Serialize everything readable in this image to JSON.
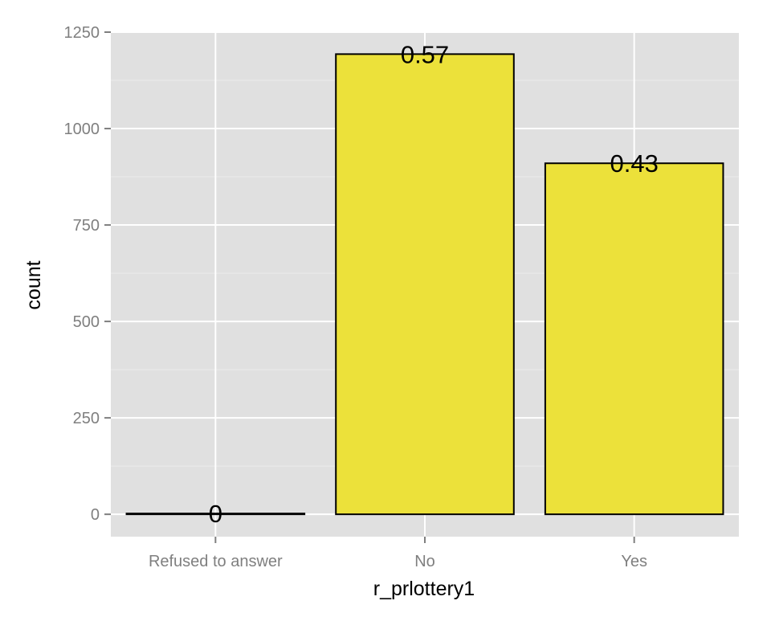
{
  "chart_data": {
    "type": "bar",
    "title": "",
    "xlabel": "r_prlottery1",
    "ylabel": "count",
    "categories": [
      "Refused to answer",
      "No",
      "Yes"
    ],
    "values": [
      2,
      1193,
      910
    ],
    "data_labels": [
      "0",
      "0.57",
      "0.43"
    ],
    "ylim": [
      -58,
      1250
    ],
    "y_ticks": [
      0,
      250,
      500,
      750,
      1000,
      1250
    ],
    "y_tick_labels": [
      "0",
      "250",
      "500",
      "750",
      "1000",
      "1250"
    ],
    "grid": true,
    "legend": "none",
    "colors": {
      "panel": "#e0e0e0",
      "grid_major": "#ffffff",
      "grid_minor": "#ebebeb",
      "bar_fill": "#ece13a",
      "bar_stroke": "#000000",
      "tick_text": "#7f7f7f",
      "title_text": "#000000"
    }
  }
}
